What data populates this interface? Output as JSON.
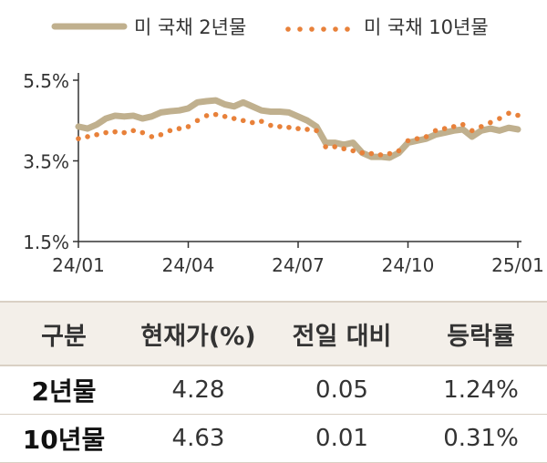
{
  "chart_data": {
    "type": "line",
    "legend": {
      "placement": "top",
      "entries": [
        "미 국채 2년물",
        "미 국채 10년물"
      ]
    },
    "ylim": [
      1.5,
      5.5
    ],
    "yticks": [
      "5.5%",
      "3.5%",
      "1.5%"
    ],
    "ytick_values": [
      5.5,
      3.5,
      1.5
    ],
    "xticks": [
      "24/01",
      "24/04",
      "24/07",
      "24/10",
      "25/01"
    ],
    "xtick_positions": [
      0,
      3,
      6,
      9,
      12
    ],
    "x_unit": "months from 2024-01",
    "grid": false,
    "colors": {
      "s1": "#c0b08e",
      "s2": "#e8813a"
    },
    "series": [
      {
        "name": "미 국채 2년물",
        "style": "thick-line",
        "x": [
          0,
          0.25,
          0.5,
          0.75,
          1,
          1.25,
          1.5,
          1.75,
          2,
          2.25,
          2.5,
          2.75,
          3,
          3.25,
          3.5,
          3.75,
          4,
          4.25,
          4.5,
          4.75,
          5,
          5.25,
          5.5,
          5.75,
          6,
          6.25,
          6.5,
          6.75,
          7,
          7.25,
          7.5,
          7.75,
          8,
          8.25,
          8.5,
          8.75,
          9,
          9.25,
          9.5,
          9.75,
          10,
          10.25,
          10.5,
          10.75,
          11,
          11.25,
          11.5,
          11.75,
          12
        ],
        "values": [
          4.35,
          4.3,
          4.4,
          4.55,
          4.62,
          4.6,
          4.62,
          4.55,
          4.6,
          4.7,
          4.73,
          4.75,
          4.8,
          4.95,
          4.98,
          5.0,
          4.9,
          4.85,
          4.95,
          4.85,
          4.75,
          4.72,
          4.72,
          4.7,
          4.6,
          4.5,
          4.35,
          3.95,
          3.95,
          3.9,
          3.95,
          3.7,
          3.6,
          3.6,
          3.58,
          3.7,
          3.95,
          4.0,
          4.05,
          4.15,
          4.2,
          4.25,
          4.28,
          4.1,
          4.25,
          4.3,
          4.25,
          4.32,
          4.28
        ]
      },
      {
        "name": "미 국채 10년물",
        "style": "dotted",
        "x": [
          0,
          0.25,
          0.5,
          0.75,
          1,
          1.25,
          1.5,
          1.75,
          2,
          2.25,
          2.5,
          2.75,
          3,
          3.25,
          3.5,
          3.75,
          4,
          4.25,
          4.5,
          4.75,
          5,
          5.25,
          5.5,
          5.75,
          6,
          6.25,
          6.5,
          6.75,
          7,
          7.25,
          7.5,
          7.75,
          8,
          8.25,
          8.5,
          8.75,
          9,
          9.25,
          9.5,
          9.75,
          10,
          10.25,
          10.5,
          10.75,
          11,
          11.25,
          11.5,
          11.75,
          12
        ],
        "values": [
          4.05,
          4.1,
          4.15,
          4.2,
          4.22,
          4.2,
          4.25,
          4.2,
          4.1,
          4.15,
          4.25,
          4.3,
          4.35,
          4.5,
          4.62,
          4.65,
          4.6,
          4.55,
          4.5,
          4.45,
          4.48,
          4.38,
          4.35,
          4.33,
          4.3,
          4.28,
          4.25,
          3.85,
          3.85,
          3.8,
          3.75,
          3.7,
          3.68,
          3.65,
          3.68,
          3.75,
          4.0,
          4.05,
          4.1,
          4.25,
          4.3,
          4.35,
          4.4,
          4.25,
          4.35,
          4.45,
          4.55,
          4.68,
          4.63
        ]
      }
    ]
  },
  "table": {
    "headers": [
      "구분",
      "현재가(%)",
      "전일 대비",
      "등락률"
    ],
    "rows": [
      [
        "2년물",
        "4.28",
        "0.05",
        "1.24%"
      ],
      [
        "10년물",
        "4.63",
        "0.01",
        "0.31%"
      ]
    ]
  }
}
